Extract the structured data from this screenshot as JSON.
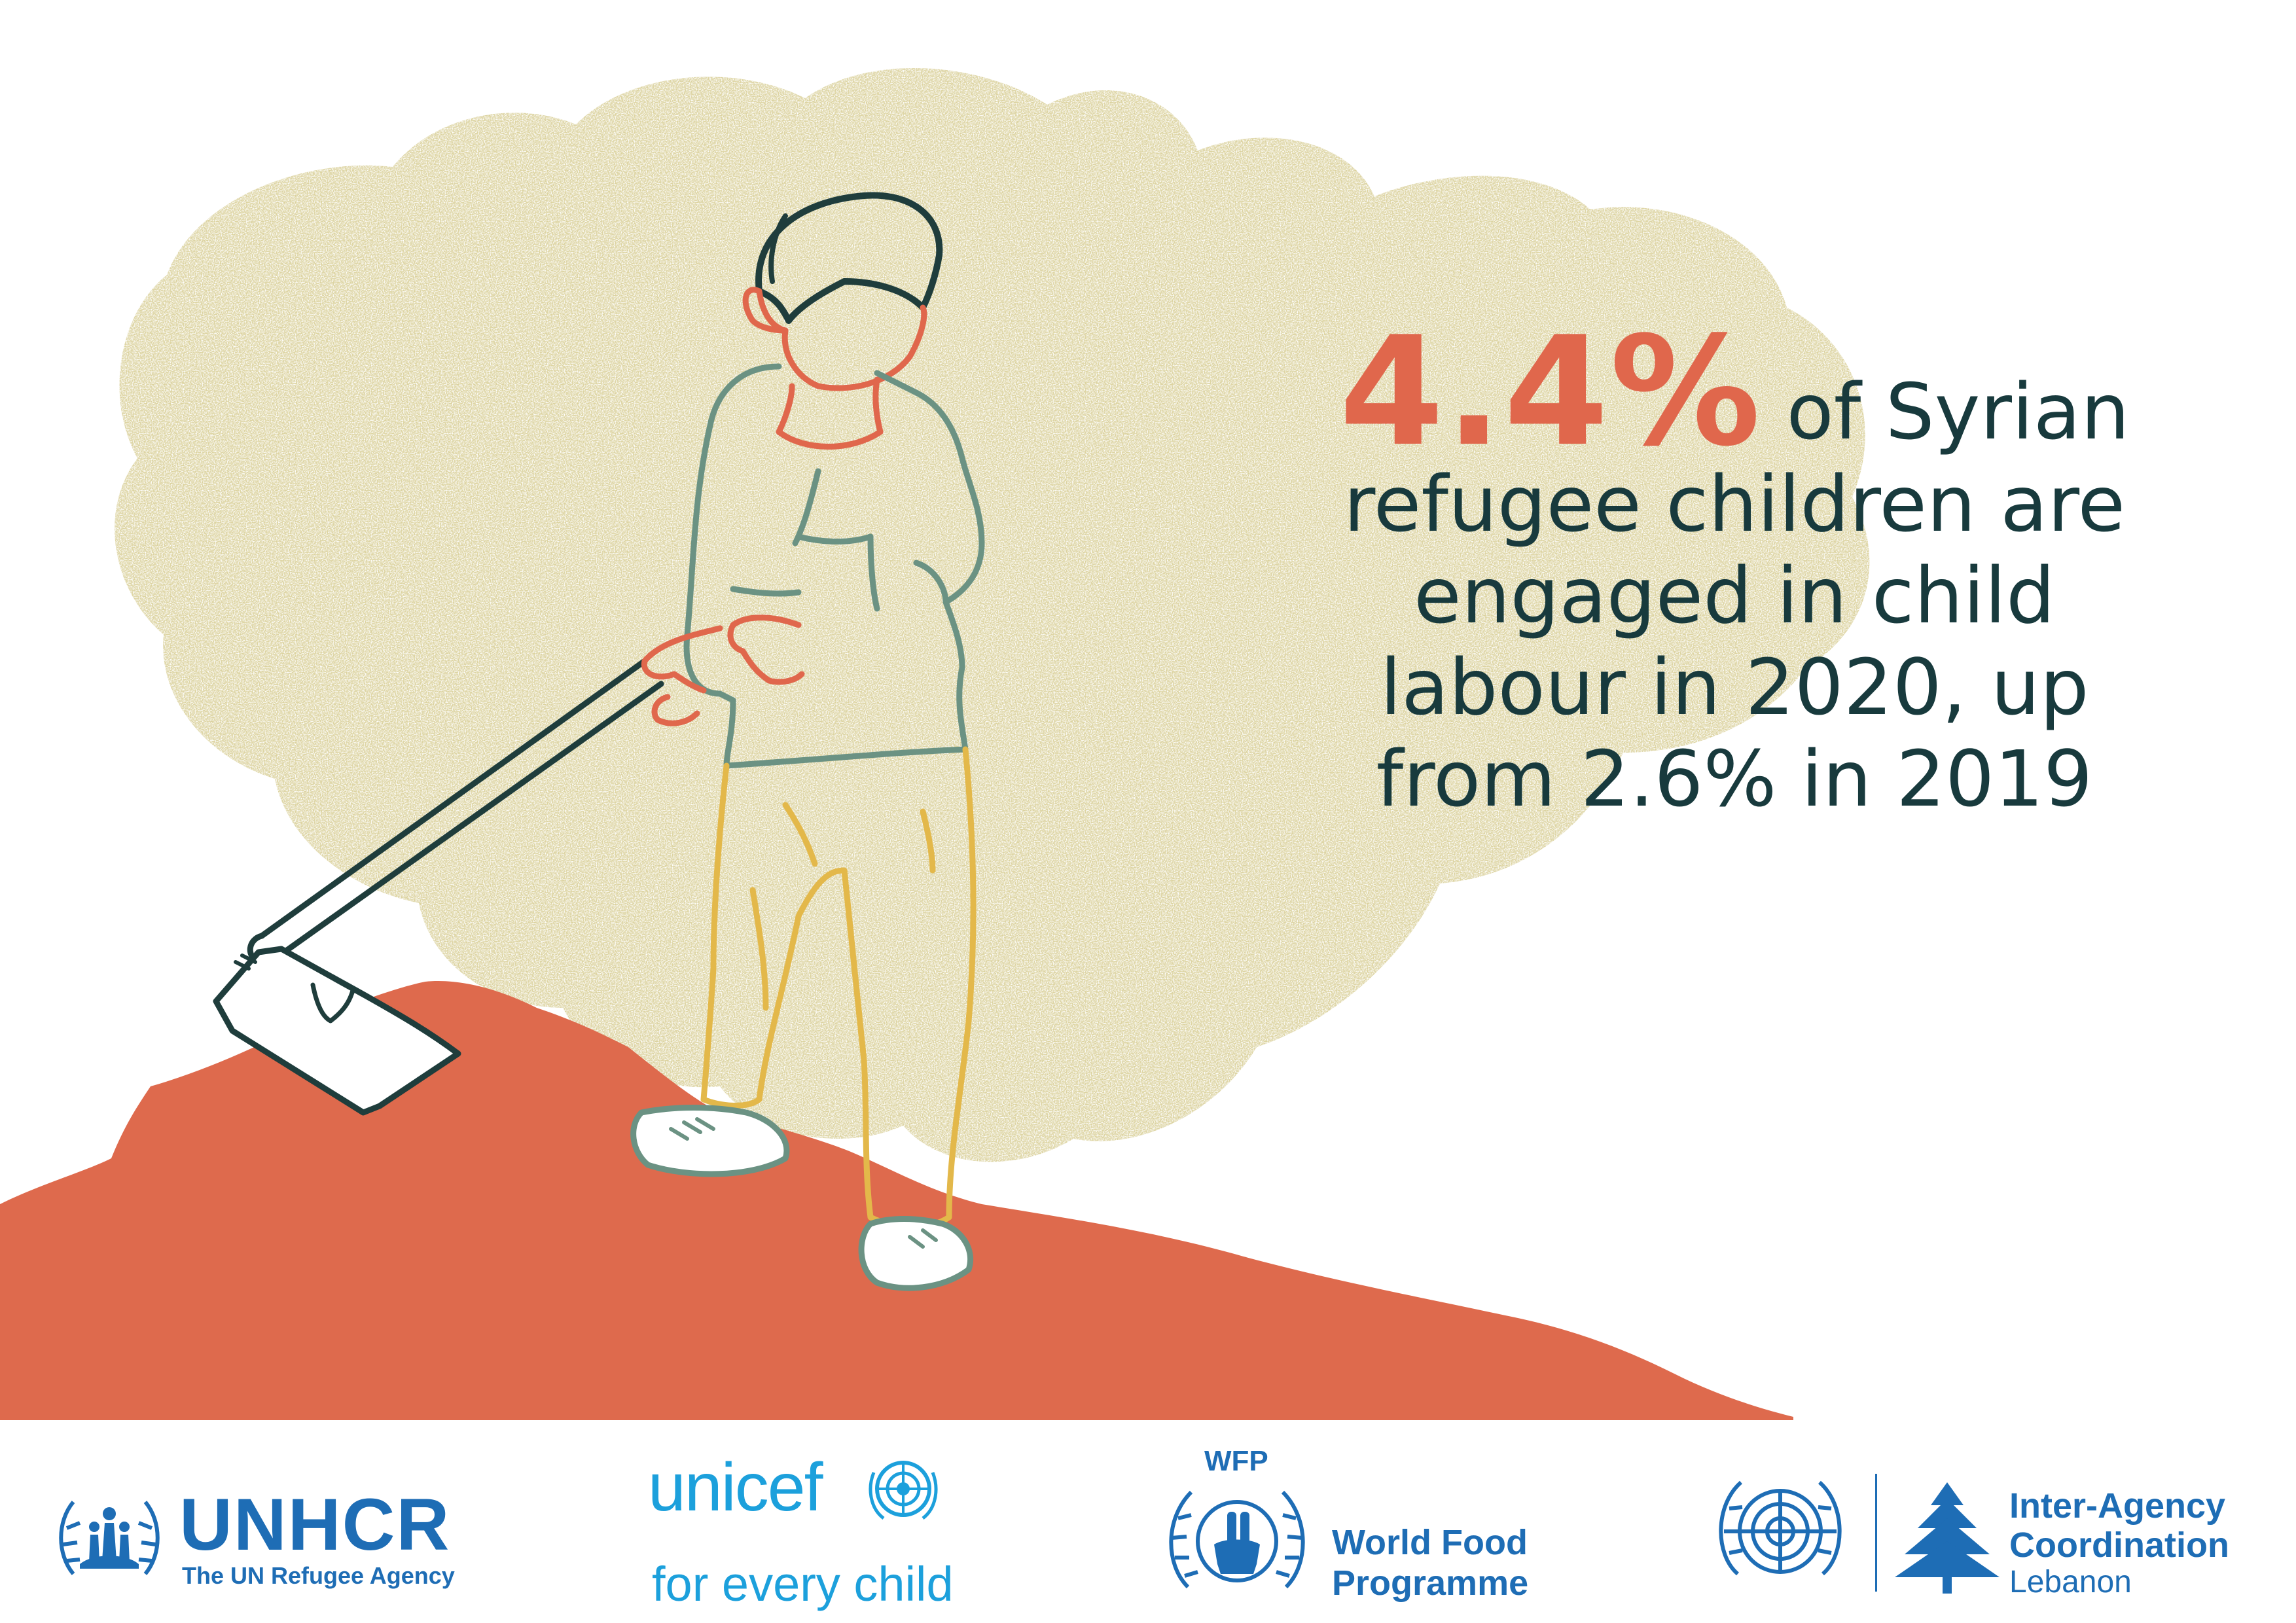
{
  "headline": {
    "percent": "4.4%",
    "lines": [
      "of Syrian",
      "refugee children are",
      "engaged in child",
      "labour in 2020, up",
      "from 2.6% in 2019"
    ]
  },
  "colors": {
    "accent": "#e0674c",
    "text": "#183a3d",
    "cloud": "#dcd3a0",
    "ground": "#de6a4d",
    "logo_blue": "#1e6db5",
    "unicef_blue": "#1ca0dc"
  },
  "illustration": {
    "subject": "child-with-hoe"
  },
  "logos": {
    "unhcr": {
      "name": "UNHCR",
      "tagline": "The UN Refugee Agency",
      "icon": "unhcr-emblem-icon"
    },
    "unicef": {
      "name": "unicef",
      "tagline": "for every child",
      "icon": "un-globe-icon"
    },
    "wfp": {
      "acronym": "WFP",
      "line1": "World Food",
      "line2": "Programme",
      "icon": "wfp-wreath-icon"
    },
    "iac": {
      "line1": "Inter-Agency",
      "line2": "Coordination",
      "line3": "Lebanon",
      "icons": [
        "un-emblem-icon",
        "cedar-tree-icon"
      ]
    }
  }
}
